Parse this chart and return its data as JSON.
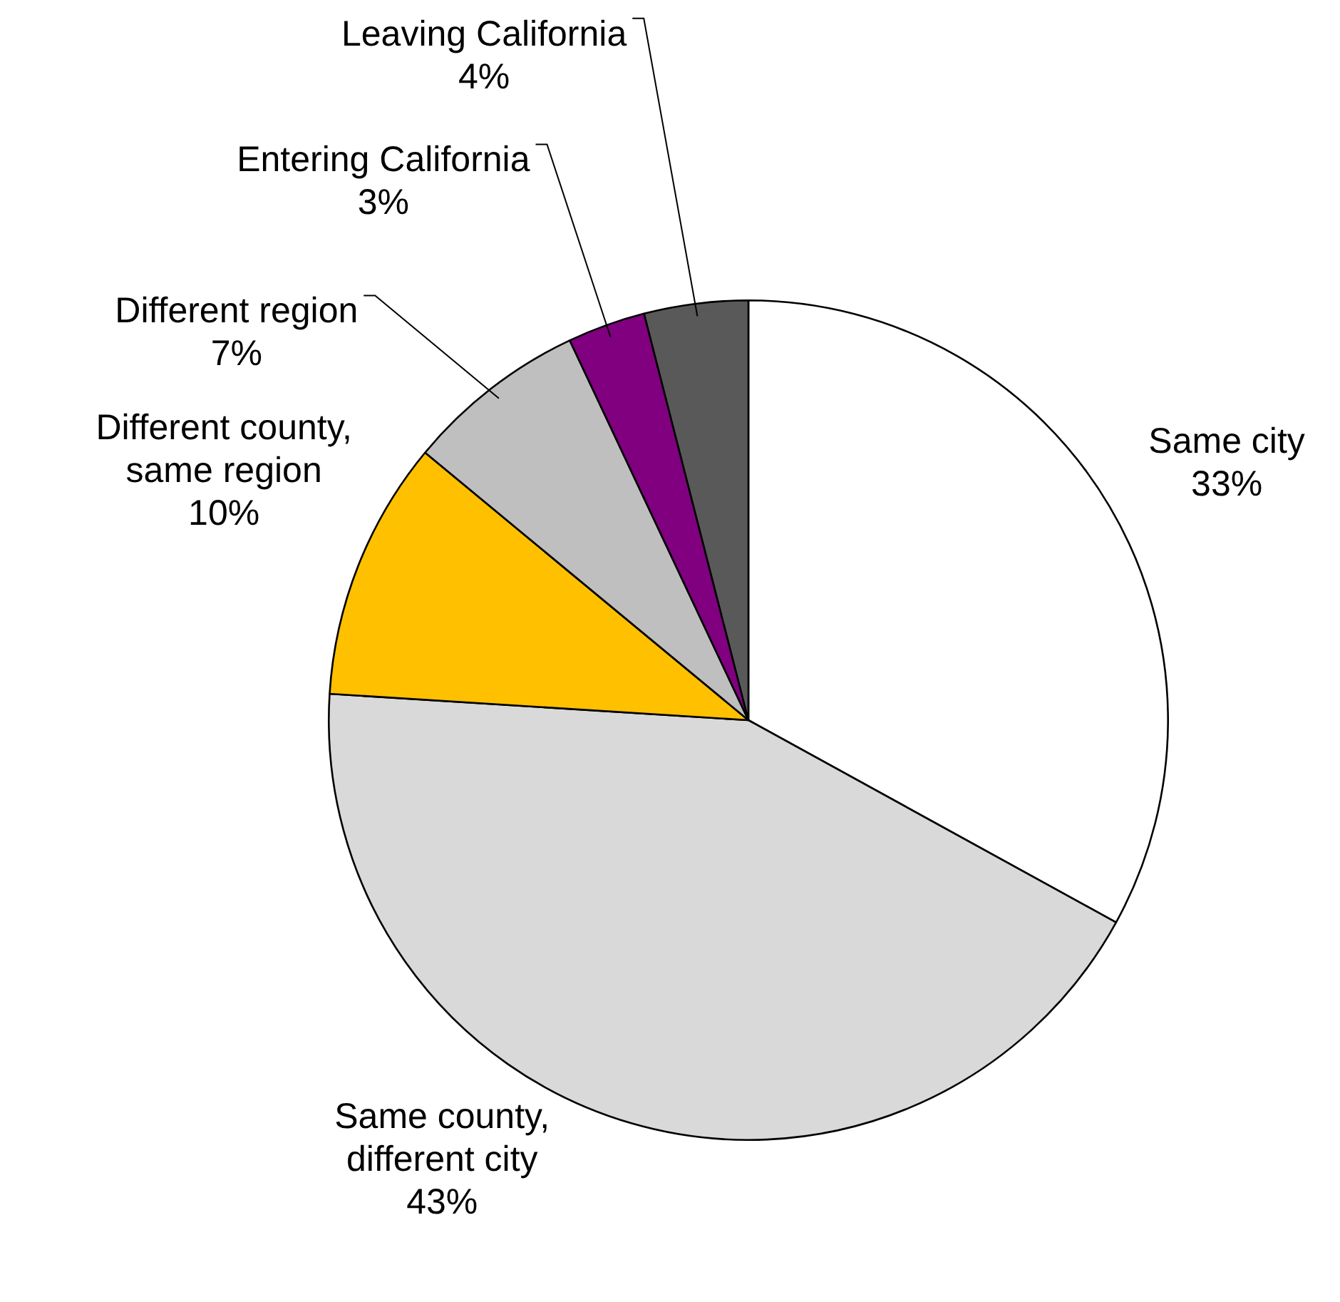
{
  "chart_data": {
    "type": "pie",
    "categories": [
      "Same city",
      "Same county, different city",
      "Different county, same region",
      "Different region",
      "Entering California",
      "Leaving California"
    ],
    "values": [
      33,
      43,
      10,
      7,
      3,
      4
    ],
    "colors": [
      "#ffffff",
      "#d9d9d9",
      "#ffc000",
      "#bfbfbf",
      "#800080",
      "#595959"
    ],
    "value_labels": [
      "33%",
      "43%",
      "10%",
      "7%",
      "3%",
      "4%"
    ],
    "legend": false
  }
}
